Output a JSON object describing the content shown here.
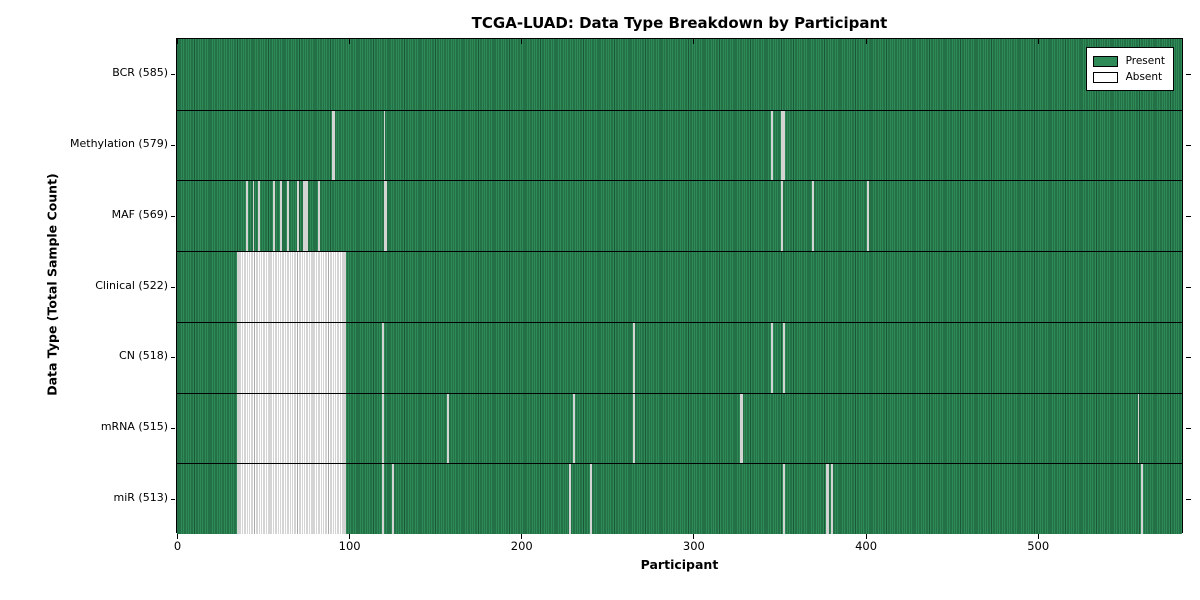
{
  "title": "TCGA-LUAD: Data Type Breakdown by Participant",
  "chart_data": {
    "type": "heatmap",
    "title": "TCGA-LUAD: Data Type Breakdown by Participant",
    "xlabel": "Participant",
    "ylabel": "Data Type (Total Sample Count)",
    "x_range": [
      0,
      585
    ],
    "x_ticks": [
      0,
      100,
      200,
      300,
      400,
      500
    ],
    "total_participants": 585,
    "grid": false,
    "legend_position": "upper right",
    "legend": {
      "present_label": "Present",
      "absent_label": "Absent"
    },
    "colors": {
      "present": "#2e8b57",
      "present_edge": "#1c5737",
      "absent": "#ffffff",
      "absent_edge": "#a8a8a8",
      "frame": "#000000"
    },
    "rows": [
      {
        "name": "BCR",
        "label": "BCR (585)",
        "present_count": 585,
        "absent": []
      },
      {
        "name": "Methylation",
        "label": "Methylation (579)",
        "present_count": 579,
        "absent": [
          90,
          91,
          120,
          345,
          351,
          352
        ]
      },
      {
        "name": "MAF",
        "label": "MAF (569)",
        "present_count": 569,
        "absent": [
          40,
          44,
          47,
          56,
          60,
          64,
          70,
          73,
          74,
          75,
          82,
          120,
          121,
          351,
          369,
          401
        ]
      },
      {
        "name": "Clinical",
        "label": "Clinical (522)",
        "present_count": 522,
        "absent": [
          [
            35,
            97
          ]
        ]
      },
      {
        "name": "CN",
        "label": "CN (518)",
        "present_count": 518,
        "absent": [
          [
            35,
            97
          ],
          119,
          265,
          345,
          352
        ]
      },
      {
        "name": "mRNA",
        "label": "mRNA (515)",
        "present_count": 515,
        "absent": [
          [
            35,
            97
          ],
          119,
          157,
          230,
          265,
          327,
          328,
          558
        ]
      },
      {
        "name": "miR",
        "label": "miR (513)",
        "present_count": 513,
        "absent": [
          [
            35,
            97
          ],
          119,
          125,
          228,
          240,
          352,
          377,
          378,
          380,
          560
        ]
      }
    ]
  }
}
